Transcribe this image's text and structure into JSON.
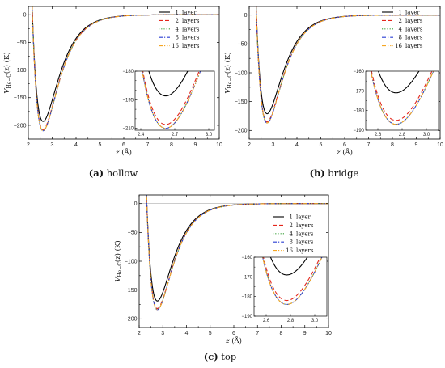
{
  "chart_data": [
    {
      "type": "line",
      "caption": {
        "label": "(a)",
        "text": "hollow"
      },
      "xlabel": "z",
      "xunit": "(Å)",
      "ylabel": "V",
      "ylabel_sub": "He−C",
      "ylabel_rest": "(z) (K)",
      "xlim": [
        2,
        10
      ],
      "ylim": [
        -225,
        15
      ],
      "xticks": [
        2,
        3,
        4,
        5,
        6,
        7,
        8,
        9,
        10
      ],
      "yticks": [
        0,
        -50,
        -100,
        -150,
        -200
      ],
      "legend_position": "top-right",
      "series": [
        {
          "name": "1",
          "suffix": "layer",
          "color": "#000000",
          "dash": "solid",
          "min_x": 2.62,
          "min_y": -193
        },
        {
          "name": "2",
          "suffix": "layers",
          "color": "#e4261c",
          "dash": "dashed",
          "min_x": 2.62,
          "min_y": -208
        },
        {
          "name": "4",
          "suffix": "layers",
          "color": "#3aa13a",
          "dash": "dotted",
          "min_x": 2.62,
          "min_y": -210
        },
        {
          "name": "8",
          "suffix": "layers",
          "color": "#2a3fd4",
          "dash": "dashdot",
          "min_x": 2.62,
          "min_y": -210
        },
        {
          "name": "16",
          "suffix": "layers",
          "color": "#f5a623",
          "dash": "dashdotdot",
          "min_x": 2.62,
          "min_y": -210
        }
      ],
      "inset": {
        "xlim": [
          2.35,
          3.05
        ],
        "ylim": [
          -211,
          -180
        ],
        "xticks": [
          2.4,
          2.7,
          3.0
        ],
        "yticks": [
          -180,
          -195,
          -210
        ],
        "minor_yticks": [
          -185,
          -190,
          -200,
          -205
        ]
      }
    },
    {
      "type": "line",
      "caption": {
        "label": "(b)",
        "text": "bridge"
      },
      "xlabel": "z",
      "xunit": "(Å)",
      "ylabel": "V",
      "ylabel_sub": "He−C",
      "ylabel_rest": "(z) (K)",
      "xlim": [
        2,
        10
      ],
      "ylim": [
        -215,
        15
      ],
      "xticks": [
        2,
        3,
        4,
        5,
        6,
        7,
        8,
        9,
        10
      ],
      "yticks": [
        0,
        -50,
        -100,
        -150,
        -200
      ],
      "legend_position": "top-right",
      "series": [
        {
          "name": "1",
          "suffix": "layer",
          "color": "#000000",
          "dash": "solid",
          "min_x": 2.75,
          "min_y": -171
        },
        {
          "name": "2",
          "suffix": "layers",
          "color": "#e4261c",
          "dash": "dashed",
          "min_x": 2.75,
          "min_y": -185
        },
        {
          "name": "4",
          "suffix": "layers",
          "color": "#3aa13a",
          "dash": "dotted",
          "min_x": 2.75,
          "min_y": -187
        },
        {
          "name": "8",
          "suffix": "layers",
          "color": "#2a3fd4",
          "dash": "dashdot",
          "min_x": 2.75,
          "min_y": -187
        },
        {
          "name": "16",
          "suffix": "layers",
          "color": "#f5a623",
          "dash": "dashdotdot",
          "min_x": 2.75,
          "min_y": -187
        }
      ],
      "inset": {
        "xlim": [
          2.5,
          3.1
        ],
        "ylim": [
          -190,
          -160
        ],
        "xticks": [
          2.6,
          2.8,
          3.0
        ],
        "yticks": [
          -160,
          -170,
          -180,
          -190
        ],
        "minor_yticks": [
          -165,
          -175,
          -185
        ]
      }
    },
    {
      "type": "line",
      "caption": {
        "label": "(c)",
        "text": "top"
      },
      "xlabel": "z",
      "xunit": "(Å)",
      "ylabel": "V",
      "ylabel_sub": "He−C",
      "ylabel_rest": "(z) (K)",
      "xlim": [
        2,
        10
      ],
      "ylim": [
        -215,
        15
      ],
      "xticks": [
        2,
        3,
        4,
        5,
        6,
        7,
        8,
        9,
        10
      ],
      "yticks": [
        0,
        -50,
        -100,
        -150,
        -200
      ],
      "legend_position": "top-right",
      "series": [
        {
          "name": "1",
          "suffix": "layer",
          "color": "#000000",
          "dash": "solid",
          "min_x": 2.77,
          "min_y": -169
        },
        {
          "name": "2",
          "suffix": "layers",
          "color": "#e4261c",
          "dash": "dashed",
          "min_x": 2.77,
          "min_y": -182
        },
        {
          "name": "4",
          "suffix": "layers",
          "color": "#3aa13a",
          "dash": "dotted",
          "min_x": 2.77,
          "min_y": -184
        },
        {
          "name": "8",
          "suffix": "layers",
          "color": "#2a3fd4",
          "dash": "dashdot",
          "min_x": 2.77,
          "min_y": -184
        },
        {
          "name": "16",
          "suffix": "layers",
          "color": "#f5a623",
          "dash": "dashdotdot",
          "min_x": 2.77,
          "min_y": -184
        }
      ],
      "inset": {
        "xlim": [
          2.5,
          3.1
        ],
        "ylim": [
          -190,
          -160
        ],
        "xticks": [
          2.6,
          2.8,
          3.0
        ],
        "yticks": [
          -160,
          -170,
          -180,
          -190
        ],
        "minor_yticks": [
          -165,
          -175,
          -185
        ]
      }
    }
  ]
}
